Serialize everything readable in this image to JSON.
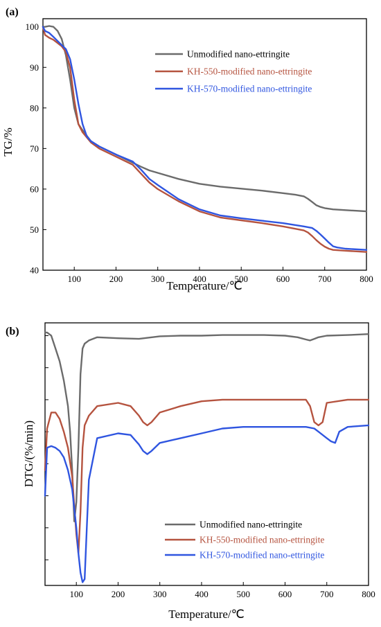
{
  "chart_data": [
    {
      "panel_label": "(a)",
      "type": "line",
      "xlabel": "Temperature/℃",
      "ylabel": "TG/%",
      "xlim": [
        25,
        800
      ],
      "ylim": [
        40,
        102
      ],
      "x_ticks": [
        100,
        200,
        300,
        400,
        500,
        600,
        700,
        800
      ],
      "y_ticks": [
        40,
        50,
        60,
        70,
        80,
        90,
        100
      ],
      "legend_position": "top-right",
      "grid": false,
      "series": [
        {
          "name": "Unmodified nano-ettringite",
          "color": "#6b6b6b",
          "x": [
            25,
            30,
            40,
            50,
            60,
            70,
            80,
            90,
            100,
            110,
            120,
            140,
            160,
            200,
            240,
            260,
            280,
            300,
            350,
            400,
            450,
            500,
            550,
            600,
            630,
            650,
            660,
            670,
            680,
            690,
            700,
            720,
            750,
            800
          ],
          "y": [
            100,
            100,
            100.2,
            100,
            99,
            97,
            93,
            87,
            80,
            76,
            74.5,
            71.8,
            70.5,
            68.5,
            66.5,
            65.5,
            64.6,
            64,
            62.5,
            61.3,
            60.6,
            60.1,
            59.6,
            59,
            58.6,
            58.2,
            57.6,
            56.8,
            56,
            55.6,
            55.3,
            55,
            54.8,
            54.5
          ]
        },
        {
          "name": "KH-550-modified nano-ettringite",
          "color": "#b5533f",
          "x": [
            25,
            30,
            40,
            50,
            60,
            70,
            80,
            90,
            100,
            110,
            120,
            140,
            160,
            200,
            240,
            260,
            280,
            300,
            350,
            400,
            450,
            500,
            550,
            600,
            650,
            660,
            670,
            680,
            690,
            700,
            710,
            720,
            750,
            800
          ],
          "y": [
            100,
            98,
            97.3,
            96.8,
            96,
            95.2,
            93.8,
            90,
            82,
            76,
            74,
            71.5,
            70,
            68,
            66,
            63.8,
            61.6,
            60,
            57,
            54.5,
            53,
            52.3,
            51.6,
            50.8,
            49.8,
            49.3,
            48.4,
            47.4,
            46.5,
            45.8,
            45.3,
            45,
            44.8,
            44.5
          ]
        },
        {
          "name": "KH-570-modified nano-ettringite",
          "color": "#2f55e0",
          "x": [
            25,
            30,
            40,
            50,
            60,
            70,
            80,
            90,
            100,
            110,
            120,
            130,
            140,
            160,
            200,
            240,
            260,
            280,
            300,
            350,
            400,
            450,
            500,
            550,
            600,
            650,
            670,
            680,
            690,
            700,
            710,
            720,
            730,
            750,
            800
          ],
          "y": [
            100,
            99,
            98.5,
            97.5,
            96.5,
            95.5,
            94.5,
            92,
            87,
            81,
            76,
            73,
            71.8,
            70.5,
            68.5,
            66.8,
            64.8,
            62.5,
            61,
            57.5,
            55,
            53.5,
            52.8,
            52.2,
            51.6,
            50.8,
            50.4,
            49.7,
            48.8,
            47.8,
            46.8,
            45.9,
            45.6,
            45.3,
            45
          ]
        }
      ]
    },
    {
      "panel_label": "(b)",
      "type": "line",
      "xlabel": "Temperature/℃",
      "ylabel": "DTG/(%/min)",
      "xlim": [
        25,
        800
      ],
      "ylim": [
        -7.8,
        0.4
      ],
      "x_ticks": [
        100,
        200,
        300,
        400,
        500,
        600,
        700,
        800
      ],
      "y_ticks_unlabeled": [
        -7,
        -6,
        -5,
        -4,
        -3,
        -2,
        -1,
        0
      ],
      "legend_position": "bottom-right",
      "grid": false,
      "series": [
        {
          "name": "Unmodified nano-ettringite",
          "color": "#6b6b6b",
          "x": [
            25,
            30,
            40,
            50,
            60,
            70,
            80,
            85,
            90,
            95,
            100,
            105,
            110,
            115,
            120,
            130,
            150,
            200,
            250,
            300,
            350,
            400,
            450,
            500,
            550,
            600,
            630,
            650,
            660,
            670,
            680,
            700,
            750,
            800
          ],
          "y": [
            0.1,
            0.1,
            0,
            -0.4,
            -0.8,
            -1.4,
            -2.2,
            -3,
            -4.2,
            -5.8,
            -5.2,
            -3.5,
            -1.2,
            -0.4,
            -0.25,
            -0.15,
            -0.05,
            -0.08,
            -0.1,
            -0.02,
            0,
            0,
            0.02,
            0.02,
            0.02,
            0,
            -0.05,
            -0.12,
            -0.15,
            -0.1,
            -0.05,
            0,
            0.02,
            0.05
          ]
        },
        {
          "name": "KH-550-modified nano-ettringite",
          "color": "#b5533f",
          "x": [
            25,
            30,
            40,
            50,
            60,
            70,
            80,
            90,
            100,
            105,
            110,
            115,
            120,
            130,
            150,
            200,
            230,
            250,
            260,
            270,
            280,
            300,
            350,
            400,
            450,
            500,
            550,
            600,
            650,
            660,
            670,
            680,
            690,
            700,
            750,
            800
          ],
          "y": [
            -4.2,
            -2.9,
            -2.4,
            -2.4,
            -2.6,
            -3,
            -3.5,
            -4.4,
            -6.2,
            -6.8,
            -5.5,
            -3.5,
            -2.8,
            -2.5,
            -2.2,
            -2.1,
            -2.2,
            -2.5,
            -2.7,
            -2.8,
            -2.7,
            -2.4,
            -2.2,
            -2.05,
            -2,
            -2,
            -2,
            -2,
            -2,
            -2.2,
            -2.7,
            -2.8,
            -2.7,
            -2.1,
            -2,
            -2
          ]
        },
        {
          "name": "KH-570-modified nano-ettringite",
          "color": "#2f55e0",
          "x": [
            25,
            30,
            40,
            50,
            60,
            70,
            80,
            90,
            100,
            105,
            110,
            115,
            120,
            125,
            130,
            150,
            200,
            230,
            250,
            260,
            270,
            280,
            300,
            350,
            400,
            450,
            500,
            550,
            600,
            650,
            670,
            680,
            700,
            710,
            720,
            730,
            750,
            800
          ],
          "y": [
            -5,
            -3.5,
            -3.45,
            -3.5,
            -3.6,
            -3.8,
            -4.2,
            -4.8,
            -6,
            -6.8,
            -7.4,
            -7.7,
            -7.6,
            -6,
            -4.5,
            -3.2,
            -3.05,
            -3.1,
            -3.4,
            -3.6,
            -3.7,
            -3.6,
            -3.35,
            -3.2,
            -3.05,
            -2.9,
            -2.85,
            -2.85,
            -2.85,
            -2.85,
            -2.9,
            -3,
            -3.2,
            -3.3,
            -3.35,
            -3.0,
            -2.85,
            -2.8
          ]
        }
      ]
    }
  ]
}
